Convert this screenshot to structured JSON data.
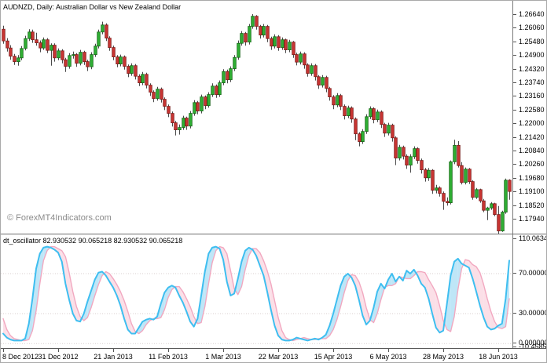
{
  "window": {
    "title": "AUDNZD, Daily: Australian Dollar vs New Zealand Dollar"
  },
  "watermark": "© ForexMT4Indicators.com",
  "indicator_panel": {
    "label": "dt_oscillator 82.930532 90.065218 82.930532 90.065218",
    "name": "dt_oscillator",
    "current_values": [
      "82.930532",
      "90.065218",
      "82.930532",
      "90.065218"
    ]
  },
  "colors": {
    "bull": "#2FAF34",
    "bull_border": "#156615",
    "bear": "#C93532",
    "bear_border": "#7C1B19",
    "wick": "#4a4a4a",
    "osc_main": "#3EBEF0",
    "osc_signal": "#F2A8C0",
    "osc_fill_up": "#BFE6F7",
    "osc_fill_down": "#FBDFE7",
    "grid_dotted": "#D9CFCF",
    "watermark": "#8A8A8A",
    "panel_border": "#6e6e6e"
  },
  "chart_data": [
    {
      "type": "candlestick",
      "title": "AUDNZD, Daily: Australian Dollar vs New Zealand Dollar",
      "symbol": "AUDNZD",
      "timeframe": "Daily",
      "ylim": [
        1.1728,
        1.272
      ],
      "grid": false,
      "y_ticks": [
        1.2664,
        1.2606,
        1.2548,
        1.249,
        1.2432,
        1.2374,
        1.2316,
        1.2258,
        1.22,
        1.2142,
        1.2084,
        1.2026,
        1.1968,
        1.191,
        1.1852,
        1.1794
      ],
      "x_labels": [
        "8 Dec 2012",
        "31 Dec 2012",
        "21 Jan 2013",
        "11 Feb 2013",
        "1 Mar 2013",
        "22 Mar 2013",
        "15 Apr 2013",
        "6 May 2013",
        "28 May 2013",
        "18 Jun 2013"
      ],
      "x_label_bars": [
        0,
        15,
        30,
        45,
        60,
        75,
        90,
        105,
        120,
        135
      ],
      "candles": [
        [
          1.26,
          1.2615,
          1.2538,
          1.255
        ],
        [
          1.255,
          1.2562,
          1.2505,
          1.252
        ],
        [
          1.252,
          1.2532,
          1.247,
          1.2485
        ],
        [
          1.2485,
          1.2495,
          1.2448,
          1.2462
        ],
        [
          1.2462,
          1.249,
          1.2445,
          1.2478
        ],
        [
          1.2478,
          1.2528,
          1.2468,
          1.2518
        ],
        [
          1.2518,
          1.2572,
          1.251,
          1.256
        ],
        [
          1.256,
          1.26,
          1.255,
          1.2588
        ],
        [
          1.2588,
          1.2598,
          1.2542,
          1.2555
        ],
        [
          1.2555,
          1.2585,
          1.253,
          1.2542
        ],
        [
          1.2542,
          1.2552,
          1.2502,
          1.252
        ],
        [
          1.252,
          1.2565,
          1.2512,
          1.2555
        ],
        [
          1.2555,
          1.2562,
          1.2498,
          1.251
        ],
        [
          1.251,
          1.254,
          1.2445,
          1.2532
        ],
        [
          1.2532,
          1.254,
          1.2462,
          1.2478
        ],
        [
          1.2478,
          1.2518,
          1.2468,
          1.2508
        ],
        [
          1.2508,
          1.2515,
          1.2455,
          1.247
        ],
        [
          1.247,
          1.2478,
          1.2418,
          1.2442
        ],
        [
          1.2442,
          1.2498,
          1.2432,
          1.2488
        ],
        [
          1.2488,
          1.2505,
          1.2475,
          1.2492
        ],
        [
          1.2492,
          1.2498,
          1.244,
          1.2455
        ],
        [
          1.2455,
          1.2512,
          1.2446,
          1.2502
        ],
        [
          1.2502,
          1.2508,
          1.2448,
          1.2462
        ],
        [
          1.2462,
          1.247,
          1.2422,
          1.244
        ],
        [
          1.244,
          1.2502,
          1.243,
          1.2492
        ],
        [
          1.2492,
          1.2538,
          1.2482,
          1.2528
        ],
        [
          1.2528,
          1.2598,
          1.2518,
          1.2588
        ],
        [
          1.2588,
          1.2632,
          1.2578,
          1.2618
        ],
        [
          1.2618,
          1.2625,
          1.255,
          1.2562
        ],
        [
          1.2562,
          1.257,
          1.2508,
          1.2522
        ],
        [
          1.2522,
          1.253,
          1.2468,
          1.2482
        ],
        [
          1.2482,
          1.249,
          1.2438,
          1.2452
        ],
        [
          1.2452,
          1.2492,
          1.2442,
          1.2482
        ],
        [
          1.2482,
          1.2488,
          1.2428,
          1.2442
        ],
        [
          1.2442,
          1.245,
          1.2396,
          1.2412
        ],
        [
          1.2412,
          1.2455,
          1.2402,
          1.2445
        ],
        [
          1.2445,
          1.2452,
          1.2386,
          1.24
        ],
        [
          1.24,
          1.2408,
          1.2358,
          1.2372
        ],
        [
          1.2372,
          1.2418,
          1.2362,
          1.2408
        ],
        [
          1.2408,
          1.2415,
          1.2348,
          1.2362
        ],
        [
          1.2362,
          1.237,
          1.2316,
          1.2332
        ],
        [
          1.2332,
          1.234,
          1.229,
          1.2305
        ],
        [
          1.2305,
          1.2355,
          1.2296,
          1.2345
        ],
        [
          1.2345,
          1.2352,
          1.2288,
          1.2302
        ],
        [
          1.2302,
          1.231,
          1.2256,
          1.2272
        ],
        [
          1.2272,
          1.228,
          1.2226,
          1.2242
        ],
        [
          1.2242,
          1.225,
          1.2186,
          1.2202
        ],
        [
          1.2202,
          1.221,
          1.2148,
          1.2172
        ],
        [
          1.2172,
          1.2195,
          1.2152,
          1.2182
        ],
        [
          1.2182,
          1.2232,
          1.2172,
          1.2222
        ],
        [
          1.2222,
          1.2228,
          1.2172,
          1.2188
        ],
        [
          1.2188,
          1.2252,
          1.2178,
          1.2242
        ],
        [
          1.2242,
          1.2298,
          1.2232,
          1.2288
        ],
        [
          1.2288,
          1.2295,
          1.2238,
          1.2252
        ],
        [
          1.2252,
          1.2322,
          1.2242,
          1.2312
        ],
        [
          1.2312,
          1.2318,
          1.226,
          1.2275
        ],
        [
          1.2275,
          1.2332,
          1.2266,
          1.2322
        ],
        [
          1.2322,
          1.237,
          1.2312,
          1.2358
        ],
        [
          1.2358,
          1.2365,
          1.2308,
          1.2322
        ],
        [
          1.2322,
          1.2382,
          1.2312,
          1.2372
        ],
        [
          1.2372,
          1.243,
          1.2362,
          1.242
        ],
        [
          1.242,
          1.2428,
          1.237,
          1.2385
        ],
        [
          1.2385,
          1.2442,
          1.2375,
          1.2432
        ],
        [
          1.2432,
          1.249,
          1.2422,
          1.248
        ],
        [
          1.248,
          1.2552,
          1.247,
          1.254
        ],
        [
          1.254,
          1.2592,
          1.253,
          1.2582
        ],
        [
          1.2582,
          1.2588,
          1.253,
          1.2545
        ],
        [
          1.2545,
          1.2622,
          1.2535,
          1.2612
        ],
        [
          1.2612,
          1.2664,
          1.2602,
          1.2655
        ],
        [
          1.2655,
          1.266,
          1.2598,
          1.2612
        ],
        [
          1.2612,
          1.2618,
          1.256,
          1.2575
        ],
        [
          1.2575,
          1.2622,
          1.2565,
          1.2612
        ],
        [
          1.2612,
          1.2618,
          1.2545,
          1.256
        ],
        [
          1.256,
          1.2568,
          1.2512,
          1.2528
        ],
        [
          1.2528,
          1.2578,
          1.2518,
          1.2568
        ],
        [
          1.2568,
          1.2575,
          1.2508,
          1.2522
        ],
        [
          1.2522,
          1.2565,
          1.2512,
          1.2555
        ],
        [
          1.2555,
          1.256,
          1.2498,
          1.2512
        ],
        [
          1.2512,
          1.2555,
          1.2502,
          1.2545
        ],
        [
          1.2545,
          1.255,
          1.2478,
          1.2492
        ],
        [
          1.2492,
          1.25,
          1.2446,
          1.246
        ],
        [
          1.246,
          1.2505,
          1.245,
          1.2495
        ],
        [
          1.2495,
          1.2502,
          1.2432,
          1.2448
        ],
        [
          1.2448,
          1.2455,
          1.2398,
          1.2412
        ],
        [
          1.2412,
          1.2455,
          1.2402,
          1.2445
        ],
        [
          1.2445,
          1.2452,
          1.2382,
          1.2398
        ],
        [
          1.2398,
          1.2405,
          1.2346,
          1.2362
        ],
        [
          1.2362,
          1.2405,
          1.2352,
          1.2395
        ],
        [
          1.2395,
          1.2402,
          1.2332,
          1.2348
        ],
        [
          1.2348,
          1.2355,
          1.2296,
          1.2312
        ],
        [
          1.2312,
          1.232,
          1.226,
          1.2278
        ],
        [
          1.2278,
          1.2328,
          1.2268,
          1.2318
        ],
        [
          1.2318,
          1.2325,
          1.2256,
          1.2272
        ],
        [
          1.2272,
          1.228,
          1.2216,
          1.2232
        ],
        [
          1.2232,
          1.2275,
          1.2222,
          1.2265
        ],
        [
          1.2265,
          1.2272,
          1.2202,
          1.2218
        ],
        [
          1.2218,
          1.2225,
          1.2128,
          1.2155
        ],
        [
          1.2155,
          1.2162,
          1.2102,
          1.2122
        ],
        [
          1.2122,
          1.2175,
          1.2112,
          1.2165
        ],
        [
          1.2165,
          1.2238,
          1.2155,
          1.2228
        ],
        [
          1.2228,
          1.2272,
          1.2218,
          1.2262
        ],
        [
          1.2262,
          1.2268,
          1.22,
          1.2215
        ],
        [
          1.2215,
          1.2258,
          1.2205,
          1.2248
        ],
        [
          1.2248,
          1.2255,
          1.218,
          1.2195
        ],
        [
          1.2195,
          1.2202,
          1.2142,
          1.2158
        ],
        [
          1.2158,
          1.2202,
          1.2148,
          1.2192
        ],
        [
          1.2192,
          1.2198,
          1.2122,
          1.2138
        ],
        [
          1.2138,
          1.2145,
          1.2022,
          1.2052
        ],
        [
          1.2052,
          1.2108,
          1.2042,
          1.2098
        ],
        [
          1.2098,
          1.2105,
          1.2046,
          1.206
        ],
        [
          1.206,
          1.2068,
          1.2006,
          1.2022
        ],
        [
          1.2022,
          1.2068,
          1.199,
          1.2058
        ],
        [
          1.2058,
          1.2102,
          1.2048,
          1.2092
        ],
        [
          1.2092,
          1.2098,
          1.2028,
          1.2042
        ],
        [
          1.2042,
          1.205,
          1.1986,
          1.2002
        ],
        [
          1.2002,
          1.201,
          1.1952,
          1.1968
        ],
        [
          1.1968,
          1.201,
          1.1955,
          1.2
        ],
        [
          1.2,
          1.2005,
          1.19,
          1.1915
        ],
        [
          1.1915,
          1.1938,
          1.1902,
          1.1925
        ],
        [
          1.1925,
          1.1932,
          1.1888,
          1.1902
        ],
        [
          1.1902,
          1.191,
          1.1832,
          1.1868
        ],
        [
          1.1868,
          1.1885,
          1.185,
          1.1862
        ],
        [
          1.1862,
          1.2042,
          1.1855,
          1.2036
        ],
        [
          1.2036,
          1.213,
          1.2026,
          1.2106
        ],
        [
          1.2106,
          1.2124,
          1.2012,
          1.202
        ],
        [
          1.202,
          1.2035,
          1.194,
          1.1948
        ],
        [
          1.1948,
          1.2012,
          1.194,
          1.2005
        ],
        [
          1.2005,
          1.201,
          1.1942,
          1.1952
        ],
        [
          1.1952,
          1.1958,
          1.1875,
          1.1885
        ],
        [
          1.1885,
          1.1925,
          1.1878,
          1.1918
        ],
        [
          1.1918,
          1.1922,
          1.1862,
          1.187
        ],
        [
          1.187,
          1.1878,
          1.1822,
          1.183
        ],
        [
          1.183,
          1.1845,
          1.1788,
          1.184
        ],
        [
          1.184,
          1.1865,
          1.1832,
          1.1858
        ],
        [
          1.1858,
          1.1862,
          1.1805,
          1.1812
        ],
        [
          1.1812,
          1.1848,
          1.1728,
          1.1742
        ],
        [
          1.1742,
          1.1828,
          1.1738,
          1.1822
        ],
        [
          1.1822,
          1.1965,
          1.1815,
          1.1958
        ],
        [
          1.1958,
          1.1962,
          1.1875,
          1.191
        ]
      ]
    },
    {
      "type": "line",
      "title": "dt_oscillator",
      "ylim": [
        -10.458515,
        110.063422
      ],
      "levels": [
        70,
        30,
        0
      ],
      "y_ticks": [
        110.063422,
        70.0,
        30.0,
        0.0,
        -10.458515
      ],
      "legend_position": "top-left",
      "series": [
        {
          "name": "dt_osc_main",
          "color": "#3EBEF0",
          "values": [
            10,
            6,
            4,
            3,
            3,
            3,
            5,
            20,
            45,
            75,
            90,
            96,
            97,
            96,
            94,
            91,
            82,
            60,
            44,
            30,
            23,
            22,
            30,
            42,
            53,
            64,
            71,
            72,
            68,
            62,
            56,
            48,
            38,
            25,
            14,
            10,
            10,
            16,
            22,
            24,
            25,
            24,
            27,
            40,
            51,
            56,
            58,
            56,
            48,
            41,
            32,
            22,
            17,
            25,
            48,
            72,
            90,
            96,
            97,
            95,
            84,
            62,
            48,
            50,
            65,
            82,
            93,
            96,
            94,
            88,
            78,
            68,
            52,
            34,
            18,
            8,
            4,
            3,
            3,
            4,
            6,
            5,
            4,
            3,
            4,
            5,
            4,
            6,
            9,
            18,
            30,
            44,
            58,
            67,
            70,
            66,
            58,
            44,
            28,
            19,
            23,
            36,
            52,
            60,
            55,
            64,
            70,
            62,
            67,
            63,
            73,
            70,
            74,
            68,
            60,
            56,
            45,
            30,
            16,
            11,
            13,
            40,
            68,
            82,
            85,
            80,
            78,
            76,
            65,
            52,
            38,
            26,
            17,
            14,
            15,
            18,
            20,
            45,
            83
          ]
        },
        {
          "name": "dt_osc_signal",
          "color": "#F2A8C0",
          "values": [
            25,
            14,
            8,
            5,
            4,
            3,
            3,
            4,
            13,
            33,
            60,
            83,
            93,
            97,
            97,
            95,
            93,
            87,
            71,
            52,
            37,
            27,
            23,
            26,
            36,
            48,
            59,
            68,
            72,
            70,
            65,
            59,
            52,
            43,
            32,
            20,
            12,
            10,
            13,
            19,
            23,
            25,
            25,
            26,
            34,
            46,
            54,
            57,
            57,
            52,
            45,
            37,
            27,
            20,
            21,
            37,
            60,
            81,
            93,
            97,
            96,
            90,
            73,
            55,
            49,
            57,
            74,
            88,
            95,
            95,
            91,
            83,
            73,
            60,
            43,
            26,
            13,
            6,
            4,
            3,
            4,
            5,
            6,
            5,
            4,
            4,
            5,
            5,
            5,
            8,
            14,
            24,
            37,
            51,
            63,
            69,
            68,
            62,
            51,
            36,
            24,
            21,
            30,
            44,
            56,
            58,
            58,
            60,
            67,
            66,
            65,
            65,
            68,
            72,
            72,
            71,
            64,
            58,
            51,
            38,
            23,
            14,
            12,
            27,
            54,
            75,
            84,
            83,
            79,
            77,
            71,
            59,
            45,
            32,
            22,
            16,
            15,
            17,
            45
          ]
        }
      ]
    }
  ]
}
